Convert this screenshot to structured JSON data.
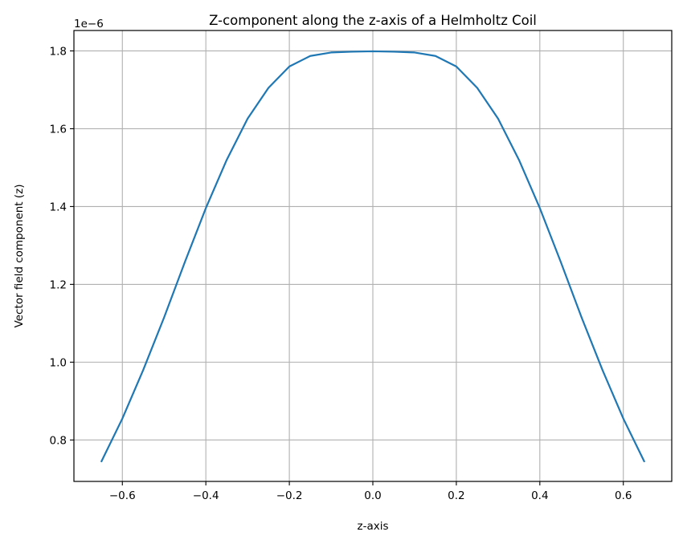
{
  "chart_data": {
    "type": "line",
    "title": "Z-component along the z-axis of a Helmholtz Coil",
    "xlabel": "z-axis",
    "ylabel": "Vector field component (z)",
    "y_scale_label": "1e−6",
    "xlim": [
      -0.716,
      0.716
    ],
    "ylim": [
      0.6935,
      1.8525
    ],
    "x_ticks": [
      -0.6,
      -0.4,
      -0.2,
      0.0,
      0.2,
      0.4,
      0.6
    ],
    "x_tick_labels": [
      "−0.6",
      "−0.4",
      "−0.2",
      "0.0",
      "0.2",
      "0.4",
      "0.6"
    ],
    "y_ticks": [
      0.8,
      1.0,
      1.2,
      1.4,
      1.6,
      1.8
    ],
    "y_tick_labels": [
      "0.8",
      "1.0",
      "1.2",
      "1.4",
      "1.6",
      "1.8"
    ],
    "grid": true,
    "line_color": "#1f77b4",
    "series": [
      {
        "name": "",
        "x": [
          -0.65,
          -0.6,
          -0.55,
          -0.5,
          -0.45,
          -0.4,
          -0.35,
          -0.3,
          -0.25,
          -0.2,
          -0.15,
          -0.1,
          -0.05,
          0.0,
          0.05,
          0.1,
          0.15,
          0.2,
          0.25,
          0.3,
          0.35,
          0.4,
          0.45,
          0.5,
          0.55,
          0.6,
          0.65
        ],
        "y": [
          0.745,
          0.855,
          0.98,
          1.115,
          1.258,
          1.396,
          1.52,
          1.626,
          1.705,
          1.76,
          1.787,
          1.796,
          1.798,
          1.799,
          1.798,
          1.796,
          1.787,
          1.76,
          1.705,
          1.626,
          1.52,
          1.396,
          1.258,
          1.115,
          0.98,
          0.855,
          0.745
        ]
      }
    ]
  }
}
